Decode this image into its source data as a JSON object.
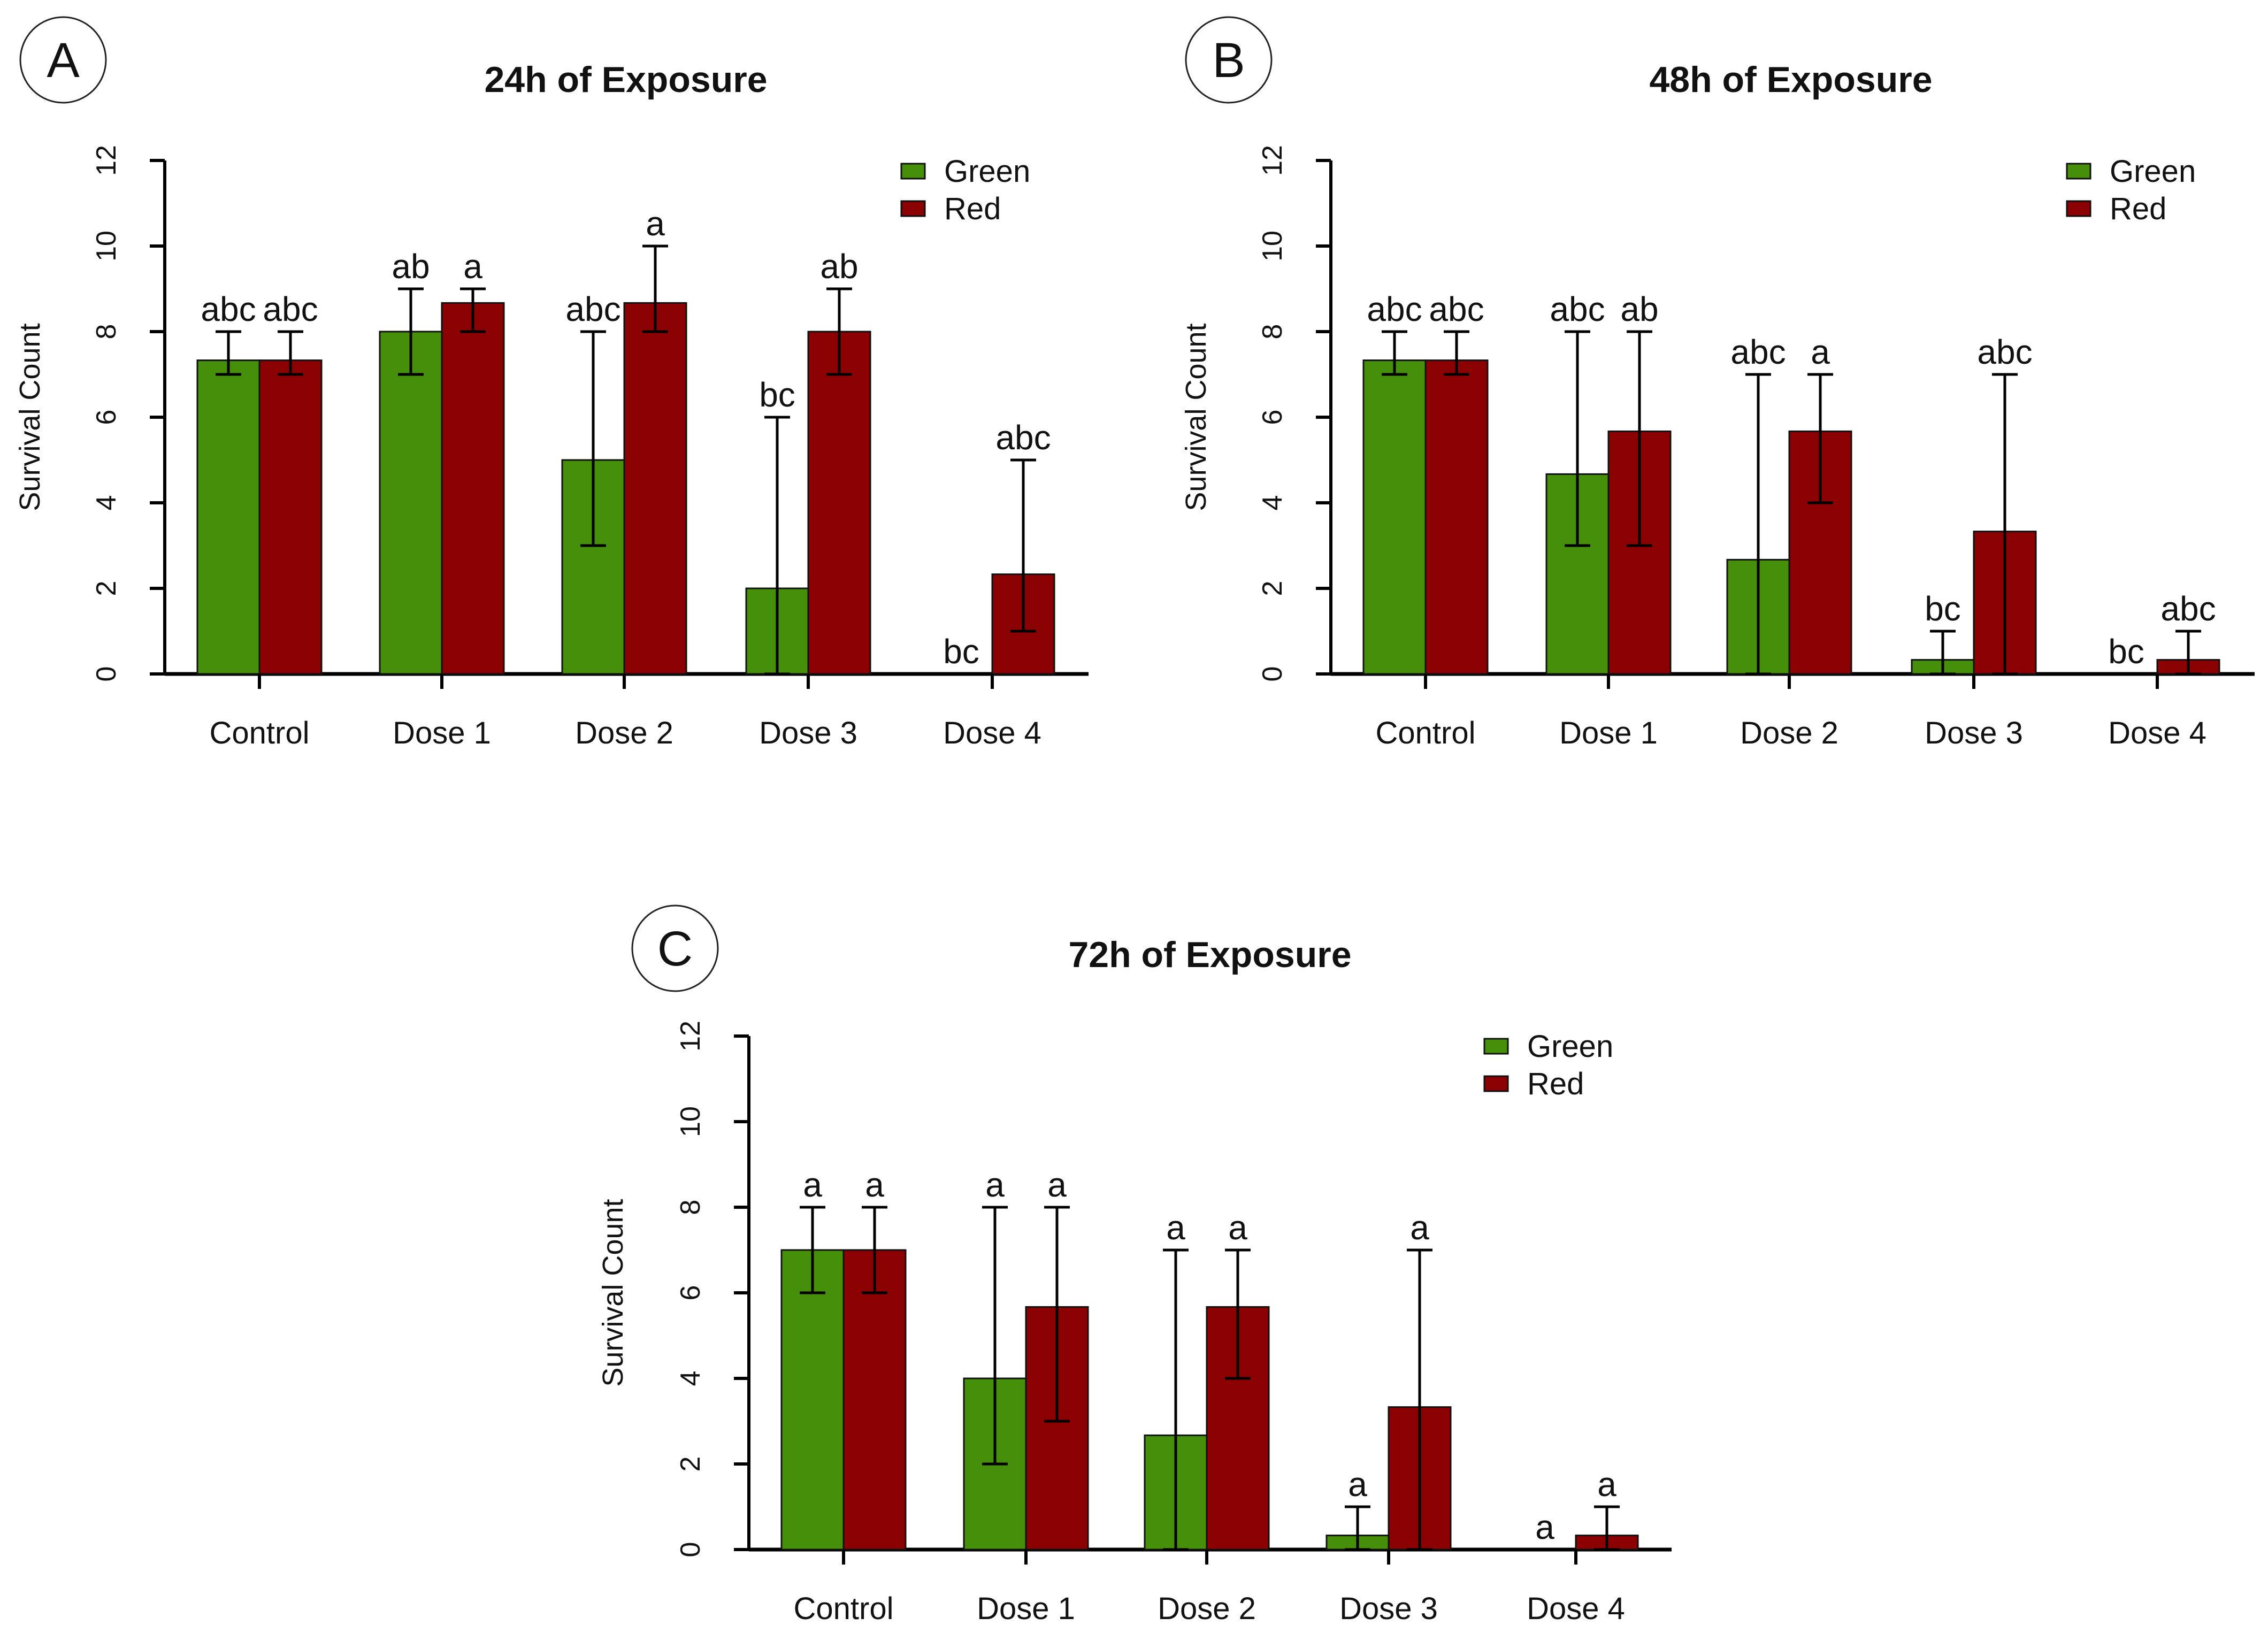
{
  "chart_data": [
    {
      "type": "bar",
      "panel": "A",
      "title": "24h of Exposure",
      "xlabel": "",
      "ylabel": "Survival Count",
      "ylim": [
        0,
        12
      ],
      "yticks": [
        "0",
        "2",
        "4",
        "6",
        "8",
        "10",
        "12"
      ],
      "categories": [
        "Control",
        "Dose 1",
        "Dose 2",
        "Dose 3",
        "Dose 4"
      ],
      "legend": {
        "position": "top-right",
        "entries": [
          "Green",
          "Red"
        ]
      },
      "series": [
        {
          "name": "Green",
          "color": "#468f0a",
          "values": [
            7.33,
            8,
            5,
            2,
            0
          ],
          "err_low": [
            7,
            7,
            3,
            0,
            0
          ],
          "err_high": [
            8,
            9,
            8,
            6,
            0
          ],
          "labels": [
            "abc",
            "ab",
            "abc",
            "bc",
            "bc"
          ]
        },
        {
          "name": "Red",
          "color": "#8b0000",
          "values": [
            7.33,
            8.67,
            8.67,
            8,
            2.33
          ],
          "err_low": [
            7,
            8,
            8,
            7,
            1
          ],
          "err_high": [
            8,
            9,
            10,
            9,
            5
          ],
          "labels": [
            "abc",
            "a",
            "a",
            "ab",
            "abc"
          ]
        }
      ]
    },
    {
      "type": "bar",
      "panel": "B",
      "title": "48h of Exposure",
      "xlabel": "",
      "ylabel": "Survival Count",
      "ylim": [
        0,
        12
      ],
      "yticks": [
        "0",
        "2",
        "4",
        "6",
        "8",
        "10",
        "12"
      ],
      "categories": [
        "Control",
        "Dose 1",
        "Dose 2",
        "Dose 3",
        "Dose 4"
      ],
      "legend": {
        "position": "top-right",
        "entries": [
          "Green",
          "Red"
        ]
      },
      "series": [
        {
          "name": "Green",
          "color": "#468f0a",
          "values": [
            7.33,
            4.67,
            2.67,
            0.33,
            0
          ],
          "err_low": [
            7,
            3,
            0,
            0,
            0
          ],
          "err_high": [
            8,
            8,
            7,
            1,
            0
          ],
          "labels": [
            "abc",
            "abc",
            "abc",
            "bc",
            "bc"
          ]
        },
        {
          "name": "Red",
          "color": "#8b0000",
          "values": [
            7.33,
            5.67,
            5.67,
            3.33,
            0.33
          ],
          "err_low": [
            7,
            3,
            4,
            0,
            0
          ],
          "err_high": [
            8,
            8,
            7,
            7,
            1
          ],
          "labels": [
            "abc",
            "ab",
            "a",
            "abc",
            "abc"
          ]
        }
      ]
    },
    {
      "type": "bar",
      "panel": "C",
      "title": "72h of Exposure",
      "xlabel": "",
      "ylabel": "Survival Count",
      "ylim": [
        0,
        12
      ],
      "yticks": [
        "0",
        "2",
        "4",
        "6",
        "8",
        "10",
        "12"
      ],
      "categories": [
        "Control",
        "Dose 1",
        "Dose 2",
        "Dose 3",
        "Dose 4"
      ],
      "legend": {
        "position": "top-right",
        "entries": [
          "Green",
          "Red"
        ]
      },
      "series": [
        {
          "name": "Green",
          "color": "#468f0a",
          "values": [
            7,
            4,
            2.67,
            0.33,
            0
          ],
          "err_low": [
            6,
            2,
            0,
            0,
            0
          ],
          "err_high": [
            8,
            8,
            7,
            1,
            0
          ],
          "labels": [
            "a",
            "a",
            "a",
            "a",
            "a"
          ]
        },
        {
          "name": "Red",
          "color": "#8b0000",
          "values": [
            7,
            5.67,
            5.67,
            3.33,
            0.33
          ],
          "err_low": [
            6,
            3,
            4,
            0,
            0
          ],
          "err_high": [
            8,
            8,
            7,
            7,
            1
          ],
          "labels": [
            "a",
            "a",
            "a",
            "a",
            "a"
          ]
        }
      ]
    }
  ]
}
